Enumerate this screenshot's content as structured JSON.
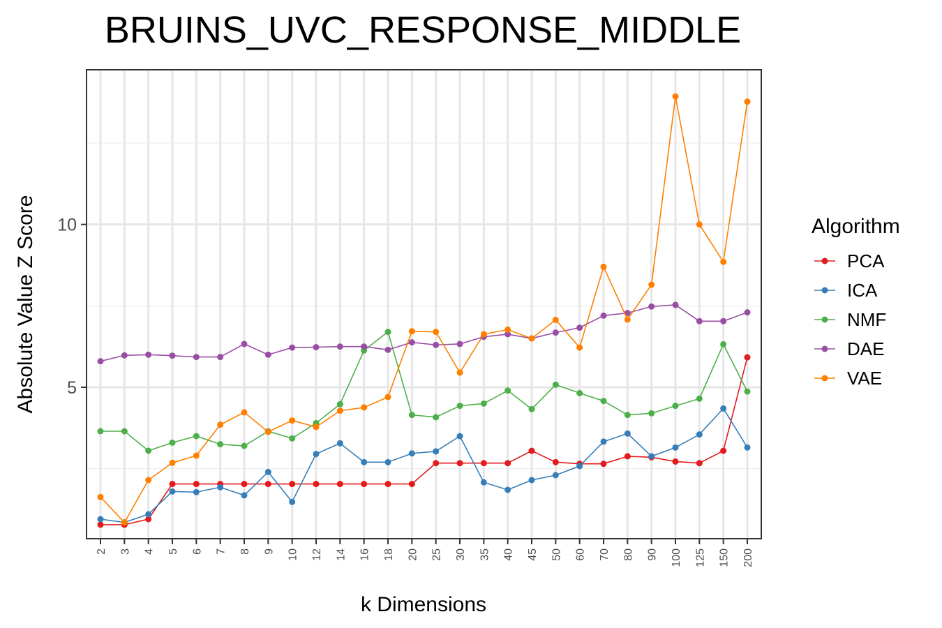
{
  "chart_data": {
    "type": "line",
    "title": "BRUINS_UVC_RESPONSE_MIDDLE",
    "xlabel": "k Dimensions",
    "ylabel": "Absolute Value Z Score",
    "categories": [
      "2",
      "3",
      "4",
      "5",
      "6",
      "7",
      "8",
      "9",
      "10",
      "12",
      "14",
      "16",
      "18",
      "20",
      "25",
      "30",
      "35",
      "40",
      "45",
      "50",
      "60",
      "70",
      "80",
      "90",
      "100",
      "125",
      "150",
      "200"
    ],
    "ylim": [
      0.35,
      14.75
    ],
    "yticks": [
      5,
      10
    ],
    "grid": true,
    "legend": {
      "title": "Algorithm",
      "position": "right"
    },
    "series": [
      {
        "name": "PCA",
        "color": "#e41a1c",
        "values": [
          0.78,
          0.78,
          0.95,
          2.03,
          2.03,
          2.03,
          2.03,
          2.03,
          2.03,
          2.03,
          2.03,
          2.03,
          2.03,
          2.03,
          2.67,
          2.67,
          2.67,
          2.67,
          3.05,
          2.7,
          2.65,
          2.65,
          2.88,
          2.85,
          2.72,
          2.67,
          3.05,
          5.92
        ]
      },
      {
        "name": "ICA",
        "color": "#377eb8",
        "values": [
          0.95,
          0.85,
          1.1,
          1.8,
          1.78,
          1.93,
          1.68,
          2.4,
          1.48,
          2.95,
          3.28,
          2.7,
          2.7,
          2.97,
          3.03,
          3.5,
          2.08,
          1.85,
          2.15,
          2.3,
          2.58,
          3.33,
          3.58,
          2.88,
          3.15,
          3.55,
          4.35,
          3.15
        ]
      },
      {
        "name": "NMF",
        "color": "#4daf4a",
        "values": [
          3.65,
          3.65,
          3.05,
          3.3,
          3.5,
          3.25,
          3.2,
          3.65,
          3.43,
          3.9,
          4.48,
          6.13,
          6.7,
          4.15,
          4.08,
          4.43,
          4.5,
          4.9,
          4.33,
          5.08,
          4.82,
          4.58,
          4.15,
          4.2,
          4.43,
          4.65,
          6.32,
          4.87
        ]
      },
      {
        "name": "DAE",
        "color": "#984ea3",
        "values": [
          5.8,
          5.98,
          6.0,
          5.97,
          5.93,
          5.93,
          6.33,
          6.0,
          6.22,
          6.23,
          6.25,
          6.25,
          6.15,
          6.38,
          6.3,
          6.33,
          6.55,
          6.63,
          6.5,
          6.68,
          6.83,
          7.2,
          7.28,
          7.48,
          7.53,
          7.03,
          7.03,
          7.3
        ]
      },
      {
        "name": "VAE",
        "color": "#ff7f00",
        "values": [
          1.63,
          0.85,
          2.15,
          2.68,
          2.9,
          3.85,
          4.23,
          3.63,
          3.98,
          3.78,
          4.28,
          4.38,
          4.7,
          6.72,
          6.7,
          5.45,
          6.63,
          6.77,
          6.5,
          7.07,
          6.22,
          8.7,
          7.08,
          8.15,
          13.93,
          10.0,
          8.85,
          13.77
        ]
      }
    ]
  }
}
